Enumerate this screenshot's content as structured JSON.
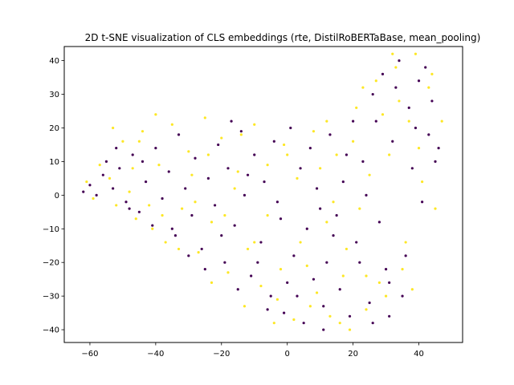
{
  "chart_data": {
    "type": "scatter",
    "title": "2D t-SNE visualization of CLS embeddings (rte, DistilRoBERTaBase, mean_pooling)",
    "xlabel": "",
    "ylabel": "",
    "xlim": [
      -67.8,
      53.3
    ],
    "ylim": [
      -43.8,
      44.2
    ],
    "x_ticks": [
      -60,
      -40,
      -20,
      0,
      20,
      40
    ],
    "y_ticks": [
      -40,
      -30,
      -20,
      -10,
      0,
      10,
      20,
      30,
      40
    ],
    "grid": false,
    "legend": "none",
    "colors": {
      "class_0": "#440154",
      "class_1": "#fde725",
      "frame": "#000000"
    },
    "series": [
      {
        "color_key": "class_0",
        "points": [
          [
            -62,
            1
          ],
          [
            -60,
            3
          ],
          [
            -58,
            0
          ],
          [
            -56,
            6
          ],
          [
            -55,
            10
          ],
          [
            -53,
            2
          ],
          [
            -51,
            8
          ],
          [
            -49,
            -2
          ],
          [
            -47,
            12
          ],
          [
            -45,
            -5
          ],
          [
            -43,
            4
          ],
          [
            -41,
            -9
          ],
          [
            -40,
            14
          ],
          [
            -38,
            -1
          ],
          [
            -36,
            7
          ],
          [
            -34,
            -12
          ],
          [
            -33,
            18
          ],
          [
            -31,
            2
          ],
          [
            -29,
            -6
          ],
          [
            -28,
            11
          ],
          [
            -26,
            -16
          ],
          [
            -24,
            5
          ],
          [
            -22,
            -3
          ],
          [
            -21,
            15
          ],
          [
            -19,
            -20
          ],
          [
            -18,
            8
          ],
          [
            -16,
            -9
          ],
          [
            -14,
            19
          ],
          [
            -13,
            0
          ],
          [
            -11,
            -24
          ],
          [
            -10,
            12
          ],
          [
            -8,
            -14
          ],
          [
            -7,
            4
          ],
          [
            -5,
            -30
          ],
          [
            -4,
            16
          ],
          [
            -2,
            -7
          ],
          [
            -1,
            -35
          ],
          [
            1,
            20
          ],
          [
            2,
            -18
          ],
          [
            4,
            8
          ],
          [
            5,
            -38
          ],
          [
            7,
            14
          ],
          [
            8,
            -25
          ],
          [
            10,
            -4
          ],
          [
            11,
            -33
          ],
          [
            13,
            18
          ],
          [
            14,
            -12
          ],
          [
            16,
            -28
          ],
          [
            17,
            4
          ],
          [
            19,
            -36
          ],
          [
            20,
            22
          ],
          [
            22,
            -20
          ],
          [
            23,
            10
          ],
          [
            25,
            -32
          ],
          [
            26,
            30
          ],
          [
            28,
            -8
          ],
          [
            29,
            36
          ],
          [
            31,
            -26
          ],
          [
            32,
            16
          ],
          [
            34,
            40
          ],
          [
            35,
            -30
          ],
          [
            37,
            26
          ],
          [
            38,
            8
          ],
          [
            40,
            34
          ],
          [
            41,
            -2
          ],
          [
            43,
            18
          ],
          [
            44,
            28
          ],
          [
            46,
            14
          ],
          [
            -48,
            -4
          ],
          [
            -35,
            -10
          ],
          [
            -25,
            -22
          ],
          [
            -15,
            -28
          ],
          [
            -6,
            -34
          ],
          [
            3,
            -30
          ],
          [
            12,
            -20
          ],
          [
            21,
            -14
          ],
          [
            30,
            -22
          ],
          [
            36,
            -18
          ],
          [
            24,
            0
          ],
          [
            15,
            -6
          ],
          [
            6,
            -10
          ],
          [
            -3,
            -2
          ],
          [
            -12,
            6
          ],
          [
            -20,
            -12
          ],
          [
            -30,
            -18
          ],
          [
            -44,
            10
          ],
          [
            -52,
            14
          ],
          [
            9,
            2
          ],
          [
            18,
            12
          ],
          [
            27,
            22
          ],
          [
            33,
            32
          ],
          [
            39,
            20
          ],
          [
            45,
            10
          ],
          [
            42,
            38
          ],
          [
            -9,
            -20
          ],
          [
            0,
            -26
          ],
          [
            11,
            -40
          ],
          [
            26,
            -38
          ],
          [
            31,
            -36
          ],
          [
            -17,
            22
          ]
        ]
      },
      {
        "color_key": "class_1",
        "points": [
          [
            -61,
            4
          ],
          [
            -59,
            -1
          ],
          [
            -57,
            9
          ],
          [
            -54,
            5
          ],
          [
            -52,
            -3
          ],
          [
            -50,
            16
          ],
          [
            -48,
            1
          ],
          [
            -46,
            -7
          ],
          [
            -44,
            19
          ],
          [
            -42,
            -3
          ],
          [
            -39,
            9
          ],
          [
            -37,
            -14
          ],
          [
            -35,
            21
          ],
          [
            -32,
            -4
          ],
          [
            -30,
            13
          ],
          [
            -27,
            -17
          ],
          [
            -25,
            23
          ],
          [
            -23,
            -8
          ],
          [
            -20,
            17
          ],
          [
            -18,
            -23
          ],
          [
            -15,
            7
          ],
          [
            -12,
            -16
          ],
          [
            -10,
            21
          ],
          [
            -8,
            -27
          ],
          [
            -6,
            9
          ],
          [
            -3,
            -31
          ],
          [
            -1,
            15
          ],
          [
            2,
            -37
          ],
          [
            3,
            5
          ],
          [
            6,
            -21
          ],
          [
            8,
            19
          ],
          [
            9,
            -29
          ],
          [
            12,
            -8
          ],
          [
            13,
            -36
          ],
          [
            15,
            12
          ],
          [
            18,
            -16
          ],
          [
            19,
            -40
          ],
          [
            21,
            26
          ],
          [
            24,
            -24
          ],
          [
            25,
            6
          ],
          [
            27,
            34
          ],
          [
            30,
            -30
          ],
          [
            31,
            12
          ],
          [
            33,
            38
          ],
          [
            36,
            -14
          ],
          [
            37,
            22
          ],
          [
            39,
            42
          ],
          [
            41,
            4
          ],
          [
            43,
            32
          ],
          [
            45,
            -4
          ],
          [
            47,
            22
          ],
          [
            -47,
            8
          ],
          [
            -41,
            -10
          ],
          [
            -33,
            -16
          ],
          [
            -23,
            -26
          ],
          [
            -13,
            -33
          ],
          [
            -4,
            -38
          ],
          [
            7,
            -33
          ],
          [
            17,
            -24
          ],
          [
            28,
            -26
          ],
          [
            35,
            -22
          ],
          [
            22,
            -4
          ],
          [
            14,
            -2
          ],
          [
            4,
            -14
          ],
          [
            -6,
            -6
          ],
          [
            -16,
            2
          ],
          [
            -28,
            -2
          ],
          [
            -38,
            -6
          ],
          [
            -45,
            16
          ],
          [
            -53,
            20
          ],
          [
            10,
            8
          ],
          [
            20,
            16
          ],
          [
            29,
            24
          ],
          [
            34,
            28
          ],
          [
            40,
            14
          ],
          [
            44,
            36
          ],
          [
            38,
            -28
          ],
          [
            24,
            -34
          ],
          [
            16,
            -38
          ],
          [
            -2,
            -22
          ],
          [
            -10,
            -14
          ],
          [
            -19,
            -6
          ],
          [
            -29,
            6
          ],
          [
            -40,
            24
          ],
          [
            -24,
            12
          ],
          [
            -14,
            18
          ],
          [
            0,
            12
          ],
          [
            12,
            22
          ],
          [
            23,
            32
          ],
          [
            32,
            42
          ]
        ]
      }
    ]
  }
}
